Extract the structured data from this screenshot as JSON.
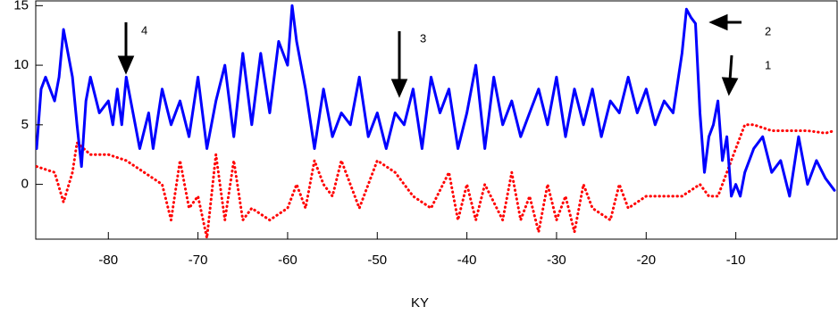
{
  "chart_data": {
    "type": "line",
    "x_label": "KY",
    "xlim": [
      -88.1,
      1.3
    ],
    "ylim": [
      -4.6,
      15.4
    ],
    "xticks": [
      -80,
      -70,
      -60,
      -50,
      -40,
      -30,
      -20,
      -10
    ],
    "yticks": [
      0,
      5,
      10,
      15
    ],
    "annotations": [
      "1",
      "2",
      "3",
      "4"
    ],
    "series": [
      {
        "color": "#0000ff",
        "style": "solid",
        "x": [
          -88,
          -87.5,
          -87,
          -86,
          -85.5,
          -85,
          -84.5,
          -84,
          -83.5,
          -83,
          -82.5,
          -82,
          -81,
          -80,
          -79.5,
          -79,
          -78.5,
          -78,
          -77,
          -76.5,
          -75.5,
          -75,
          -74,
          -73,
          -72,
          -71,
          -70,
          -69,
          -68,
          -67,
          -66,
          -65,
          -64.5,
          -64,
          -63,
          -62,
          -61,
          -60,
          -59.5,
          -59,
          -58,
          -57,
          -56,
          -55,
          -54,
          -53,
          -52,
          -51,
          -50,
          -49,
          -48,
          -47,
          -46,
          -45,
          -44,
          -43,
          -42,
          -41,
          -40,
          -39,
          -38,
          -37,
          -36,
          -35,
          -34,
          -33,
          -32,
          -31,
          -30,
          -29,
          -28,
          -27,
          -26,
          -25,
          -24,
          -23,
          -22,
          -21,
          -20,
          -19,
          -18,
          -17,
          -16,
          -15.5,
          -15,
          -14.5,
          -14,
          -13.5,
          -13,
          -12.5,
          -12,
          -11.5,
          -11,
          -10.5,
          -10,
          -9.5,
          -9,
          -8,
          -7,
          -6,
          -5,
          -4,
          -3,
          -2,
          -1,
          0,
          1
        ],
        "values": [
          3,
          8,
          9,
          7,
          9,
          13,
          11,
          9,
          5,
          1.5,
          7,
          9,
          6,
          7,
          5,
          8,
          5,
          9,
          5,
          3,
          6,
          3,
          8,
          5,
          7,
          4,
          9,
          3,
          7,
          10,
          4,
          11,
          8,
          5,
          11,
          6,
          12,
          10,
          15,
          12,
          8,
          3,
          8,
          4,
          6,
          5,
          9,
          4,
          6,
          3,
          6,
          5,
          8,
          3,
          9,
          6,
          8,
          3,
          6,
          10,
          3,
          9,
          5,
          7,
          4,
          6,
          8,
          5,
          9,
          4,
          8,
          5,
          8,
          4,
          7,
          6,
          9,
          6,
          8,
          5,
          7,
          6,
          11,
          14.7,
          14,
          13.5,
          6,
          1,
          4,
          5,
          7,
          2,
          4,
          -1,
          0,
          -1,
          1,
          3,
          4,
          1,
          2,
          -1,
          4,
          0,
          2,
          0.5,
          -0.5
        ]
      },
      {
        "color": "#ff0000",
        "style": "dotted",
        "x": [
          -88,
          -86,
          -85,
          -84,
          -83.5,
          -82,
          -80,
          -78,
          -76,
          -74,
          -73,
          -72,
          -71,
          -70,
          -69,
          -68,
          -67,
          -66,
          -65,
          -64,
          -62,
          -60,
          -59,
          -58,
          -57,
          -56,
          -55,
          -54,
          -52,
          -50,
          -48,
          -46,
          -44,
          -42,
          -41,
          -40,
          -39,
          -38,
          -36,
          -35,
          -34,
          -33,
          -32,
          -31,
          -30,
          -29,
          -28,
          -27,
          -26,
          -24,
          -23,
          -22,
          -20,
          -18,
          -16,
          -14,
          -13,
          -12,
          -11,
          -10,
          -9,
          -8,
          -6,
          -4,
          -2,
          0,
          1
        ],
        "values": [
          1.5,
          1,
          -1.5,
          1,
          3.5,
          2.5,
          2.5,
          2,
          1,
          0,
          -3,
          2,
          -2,
          -1,
          -4.5,
          2.5,
          -3,
          2,
          -3,
          -2,
          -3,
          -2,
          0,
          -2,
          2,
          0,
          -1,
          2,
          -2,
          2,
          1,
          -1,
          -2,
          1,
          -3,
          0,
          -3,
          0,
          -3,
          1,
          -3,
          -1,
          -4,
          0,
          -3,
          -1,
          -4,
          0,
          -2,
          -3,
          0,
          -2,
          -1,
          -1,
          -1,
          0,
          -1,
          -1,
          1,
          3,
          5,
          5,
          4.5,
          4.5,
          4.5,
          4.3,
          4.5
        ]
      }
    ]
  }
}
